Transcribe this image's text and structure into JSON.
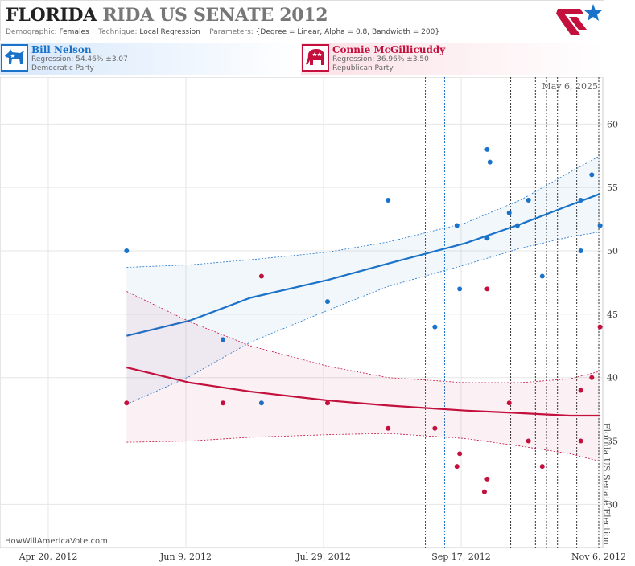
{
  "header": {
    "state": "FLORIDA",
    "race": "RIDA US SENATE 2012",
    "demographic_label": "Demographic:",
    "demographic": "Females",
    "technique_label": "Technique:",
    "technique": "Local Regression",
    "parameters_label": "Parameters:",
    "parameters": "{Degree = Linear, Alpha = 0.8, Bandwidth = 200}"
  },
  "candidates": [
    {
      "name": "Bill Nelson",
      "regression": "Regression: 54.46% ±3.07",
      "party": "Democratic Party",
      "color": "#1a73c9",
      "icon": "donkey-icon"
    },
    {
      "name": "Connie McGillicuddy",
      "regression": "Regression: 36.96% ±3.50",
      "party": "Republican Party",
      "color": "#c3103d",
      "icon": "elephant-icon"
    }
  ],
  "footer": {
    "credit": "HowWillAmericaVote.com"
  },
  "chart_data": {
    "type": "scatter",
    "date_label": "May 6, 2025",
    "event_label": "Florida US Senate Election",
    "x_ticks": [
      "Apr 20, 2012",
      "Jun 9, 2012",
      "Jul 29, 2012",
      "Sep 17, 2012",
      "Nov 6, 2012"
    ],
    "x_range": [
      "2012-04-01",
      "2012-11-06"
    ],
    "y_ticks": [
      30,
      35,
      40,
      45,
      50,
      55,
      60
    ],
    "ylim": [
      26.6,
      63.7
    ],
    "event_lines": [
      {
        "date": "2012-09-04",
        "color": "#c3103d"
      },
      {
        "date": "2012-09-11",
        "color": "#1a73c9"
      },
      {
        "date": "2012-10-05",
        "color": "#333333"
      },
      {
        "date": "2012-10-14",
        "color": "#333333"
      },
      {
        "date": "2012-10-18",
        "color": "#333333"
      },
      {
        "date": "2012-10-22",
        "color": "#333333"
      },
      {
        "date": "2012-10-29",
        "color": "#333333"
      },
      {
        "date": "2012-11-06",
        "color": "#333333"
      }
    ],
    "series": [
      {
        "name": "Bill Nelson",
        "color": "#1a73c9",
        "points": [
          [
            "2012-05-17",
            50
          ],
          [
            "2012-06-21",
            43
          ],
          [
            "2012-07-05",
            38
          ],
          [
            "2012-07-29",
            46
          ],
          [
            "2012-08-20",
            54
          ],
          [
            "2012-09-06",
            44
          ],
          [
            "2012-09-14",
            52
          ],
          [
            "2012-09-15",
            47
          ],
          [
            "2012-09-25",
            58
          ],
          [
            "2012-09-26",
            57
          ],
          [
            "2012-09-25",
            51
          ],
          [
            "2012-10-03",
            53
          ],
          [
            "2012-10-06",
            52
          ],
          [
            "2012-10-10",
            54
          ],
          [
            "2012-10-15",
            48
          ],
          [
            "2012-10-29",
            50
          ],
          [
            "2012-10-29",
            54
          ],
          [
            "2012-11-02",
            56
          ],
          [
            "2012-11-05",
            52
          ]
        ],
        "trend": [
          [
            "2012-05-17",
            43.3
          ],
          [
            "2012-06-09",
            44.5
          ],
          [
            "2012-07-01",
            46.3
          ],
          [
            "2012-07-29",
            47.7
          ],
          [
            "2012-08-20",
            49.0
          ],
          [
            "2012-09-17",
            50.6
          ],
          [
            "2012-10-07",
            52.1
          ],
          [
            "2012-10-25",
            53.6
          ],
          [
            "2012-11-05",
            54.5
          ]
        ],
        "band_upper": [
          [
            "2012-05-17",
            48.7
          ],
          [
            "2012-06-09",
            48.9
          ],
          [
            "2012-07-01",
            49.3
          ],
          [
            "2012-07-29",
            49.9
          ],
          [
            "2012-08-20",
            50.7
          ],
          [
            "2012-09-17",
            52.2
          ],
          [
            "2012-10-07",
            54.0
          ],
          [
            "2012-10-25",
            56.2
          ],
          [
            "2012-11-05",
            57.5
          ]
        ],
        "band_lower": [
          [
            "2012-05-17",
            37.9
          ],
          [
            "2012-06-09",
            40.1
          ],
          [
            "2012-07-01",
            42.8
          ],
          [
            "2012-07-29",
            45.3
          ],
          [
            "2012-08-20",
            47.2
          ],
          [
            "2012-09-17",
            48.9
          ],
          [
            "2012-10-07",
            50.2
          ],
          [
            "2012-10-25",
            51.1
          ],
          [
            "2012-11-05",
            51.5
          ]
        ]
      },
      {
        "name": "Connie McGillicuddy",
        "color": "#c3103d",
        "points": [
          [
            "2012-05-17",
            38
          ],
          [
            "2012-06-21",
            38
          ],
          [
            "2012-07-05",
            48
          ],
          [
            "2012-07-29",
            38
          ],
          [
            "2012-08-20",
            36
          ],
          [
            "2012-09-06",
            36
          ],
          [
            "2012-09-14",
            33
          ],
          [
            "2012-09-15",
            34
          ],
          [
            "2012-09-24",
            31
          ],
          [
            "2012-09-25",
            32
          ],
          [
            "2012-09-25",
            47
          ],
          [
            "2012-10-03",
            38
          ],
          [
            "2012-10-10",
            35
          ],
          [
            "2012-10-15",
            33
          ],
          [
            "2012-10-29",
            39
          ],
          [
            "2012-10-29",
            35
          ],
          [
            "2012-11-02",
            40
          ],
          [
            "2012-11-05",
            44
          ]
        ],
        "trend": [
          [
            "2012-05-17",
            40.8
          ],
          [
            "2012-06-09",
            39.6
          ],
          [
            "2012-07-01",
            38.9
          ],
          [
            "2012-07-29",
            38.2
          ],
          [
            "2012-08-20",
            37.8
          ],
          [
            "2012-09-17",
            37.4
          ],
          [
            "2012-10-07",
            37.2
          ],
          [
            "2012-10-25",
            37.0
          ],
          [
            "2012-11-05",
            37.0
          ]
        ],
        "band_upper": [
          [
            "2012-05-17",
            46.8
          ],
          [
            "2012-06-09",
            44.4
          ],
          [
            "2012-07-01",
            42.5
          ],
          [
            "2012-07-29",
            40.9
          ],
          [
            "2012-08-20",
            40.0
          ],
          [
            "2012-09-17",
            39.6
          ],
          [
            "2012-10-07",
            39.6
          ],
          [
            "2012-10-25",
            39.9
          ],
          [
            "2012-11-05",
            40.5
          ]
        ],
        "band_lower": [
          [
            "2012-05-17",
            34.9
          ],
          [
            "2012-06-09",
            35.0
          ],
          [
            "2012-07-01",
            35.3
          ],
          [
            "2012-07-29",
            35.5
          ],
          [
            "2012-08-20",
            35.6
          ],
          [
            "2012-09-17",
            35.2
          ],
          [
            "2012-10-07",
            34.6
          ],
          [
            "2012-10-25",
            34.0
          ],
          [
            "2012-11-05",
            33.4
          ]
        ]
      }
    ]
  }
}
